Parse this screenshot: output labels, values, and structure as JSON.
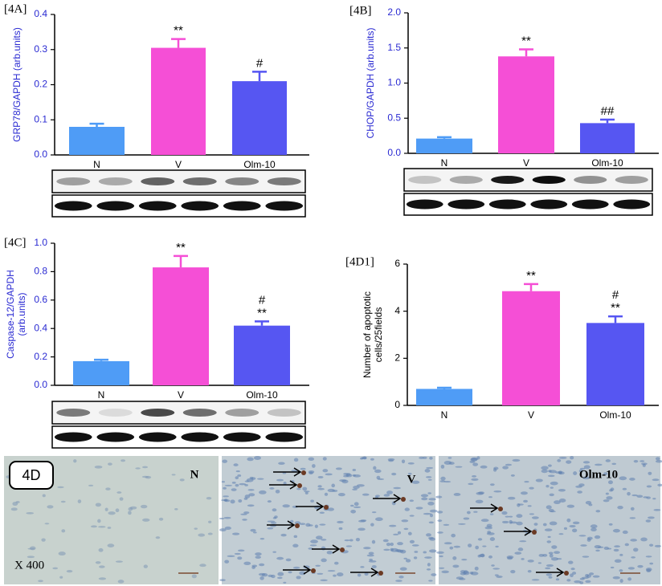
{
  "chart_data": [
    {
      "type": "bar",
      "label": "[4A]",
      "ylabel": [
        "GRP78/GAPDH (arb.units)"
      ],
      "text_color": "#2a2ad2",
      "categories": [
        "N",
        "V",
        "Olm-10"
      ],
      "values": [
        0.08,
        0.305,
        0.21
      ],
      "errors": [
        0.009,
        0.025,
        0.027
      ],
      "colors": [
        "#4f9cf6",
        "#f54fd6",
        "#5656f2"
      ],
      "annotations": [
        null,
        [
          "**"
        ],
        [
          "#"
        ]
      ],
      "ylim": [
        0,
        0.4
      ],
      "yticks": [
        {
          "value": 0,
          "label": "0.0"
        },
        0.1,
        0.2,
        0.3,
        0.4
      ]
    },
    {
      "type": "bar",
      "label": "[4B]",
      "ylabel": [
        "CHOP/GAPDH (arb.units)"
      ],
      "text_color": "#2a2ad2",
      "categories": [
        "N",
        "V",
        "Olm-10"
      ],
      "values": [
        0.21,
        1.38,
        0.43
      ],
      "errors": [
        0.02,
        0.1,
        0.05
      ],
      "colors": [
        "#4f9cf6",
        "#f54fd6",
        "#5656f2"
      ],
      "annotations": [
        null,
        [
          "**"
        ],
        [
          "##"
        ]
      ],
      "ylim": [
        0,
        2
      ],
      "yticks": [
        {
          "value": 0,
          "label": "0.0"
        },
        0.5,
        {
          "value": 1,
          "label": "1.0"
        },
        1.5,
        {
          "value": 2,
          "label": "2.0"
        }
      ]
    },
    {
      "type": "bar",
      "label": "[4C]",
      "ylabel": [
        "Caspase-12/GAPDH",
        "(arb.units)"
      ],
      "text_color": "#2a2ad2",
      "categories": [
        "N",
        "V",
        "Olm-10"
      ],
      "values": [
        0.17,
        0.83,
        0.42
      ],
      "errors": [
        0.01,
        0.08,
        0.03
      ],
      "colors": [
        "#4f9cf6",
        "#f54fd6",
        "#5656f2"
      ],
      "annotations": [
        null,
        [
          "**"
        ],
        [
          "#",
          "**"
        ]
      ],
      "ylim": [
        0,
        1
      ],
      "yticks": [
        {
          "value": 0,
          "label": "0.0"
        },
        0.2,
        0.4,
        0.6,
        0.8,
        {
          "value": 1,
          "label": "1.0"
        }
      ]
    },
    {
      "type": "bar",
      "label": "[4D1]",
      "ylabel": [
        "Number of apoptotic",
        "cells/25fields"
      ],
      "text_color": "#000000",
      "categories": [
        "N",
        "V",
        "Olm-10"
      ],
      "values": [
        0.7,
        4.85,
        3.5
      ],
      "errors": [
        0.05,
        0.3,
        0.28
      ],
      "colors": [
        "#4f9cf6",
        "#f54fd6",
        "#5656f2"
      ],
      "annotations": [
        null,
        [
          "**"
        ],
        [
          "#",
          "**"
        ]
      ],
      "ylim": [
        0,
        6
      ],
      "yticks": [
        0,
        2,
        4,
        6
      ]
    }
  ],
  "micrographs": {
    "panel_label": "4D",
    "magnification": "X 400",
    "images": [
      "N",
      "V",
      "Olm-10"
    ]
  }
}
